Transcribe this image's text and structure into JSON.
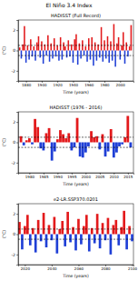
{
  "title": "El Niño 3.4 Index",
  "chart_data": [
    {
      "type": "bar",
      "title": "HADISST (Full Record)",
      "x_label": "Time (years)",
      "y_label": "(°C)",
      "x": [
        1872,
        1874,
        1876,
        1878,
        1880,
        1882,
        1884,
        1886,
        1888,
        1890,
        1892,
        1894,
        1896,
        1898,
        1900,
        1902,
        1904,
        1906,
        1908,
        1910,
        1912,
        1914,
        1916,
        1918,
        1920,
        1922,
        1924,
        1926,
        1928,
        1930,
        1932,
        1934,
        1936,
        1938,
        1940,
        1942,
        1944,
        1946,
        1948,
        1950,
        1952,
        1954,
        1956,
        1958,
        1960,
        1962,
        1964,
        1966,
        1968,
        1970,
        1972,
        1974,
        1976,
        1978,
        1980,
        1982,
        1984,
        1986,
        1988,
        1990,
        1992,
        1994,
        1996,
        1998,
        2000,
        2002,
        2004,
        2006,
        2008,
        2010,
        2012,
        2014
      ],
      "values": [
        0.3,
        -0.8,
        0.6,
        2.4,
        -1.2,
        0.5,
        -0.9,
        1.1,
        -0.6,
        0.4,
        -1.0,
        0.8,
        1.4,
        -0.7,
        0.9,
        -1.3,
        0.6,
        -0.5,
        1.5,
        -1.1,
        0.7,
        -0.8,
        1.2,
        -0.6,
        0.5,
        -1.0,
        1.3,
        -0.9,
        0.8,
        0.4,
        -0.7,
        1.0,
        -0.6,
        0.6,
        -1.2,
        1.1,
        1.6,
        -1.4,
        0.7,
        -0.8,
        1.0,
        -0.5,
        0.4,
        -1.1,
        1.2,
        -0.9,
        1.3,
        -1.5,
        0.8,
        -1.0,
        0.6,
        -0.7,
        2.3,
        -1.1,
        1.0,
        -0.8,
        1.4,
        -1.2,
        0.9,
        -1.0,
        2.6,
        -1.6,
        0.7,
        1.3,
        -0.9,
        0.5,
        1.8,
        -1.3,
        0.8,
        -0.6,
        0.4,
        2.5
      ],
      "xlim": [
        1870,
        2017
      ],
      "xticks": [
        1880,
        1900,
        1920,
        1940,
        1960,
        1980,
        2000
      ],
      "ylim": [
        -3,
        3
      ],
      "yticks": [
        -2,
        0,
        2
      ],
      "reference_lines": [
        0.5,
        -0.5
      ]
    },
    {
      "type": "bar",
      "title": "HADISST (1976 - 2016)",
      "x_label": "Time (years)",
      "y_label": "(°C)",
      "x": [
        1977,
        1978,
        1979,
        1980,
        1981,
        1982,
        1983,
        1984,
        1985,
        1986,
        1987,
        1988,
        1989,
        1990,
        1991,
        1992,
        1993,
        1994,
        1995,
        1996,
        1997,
        1998,
        1999,
        2000,
        2001,
        2002,
        2003,
        2004,
        2005,
        2006,
        2007,
        2008,
        2009,
        2010,
        2011,
        2012,
        2013,
        2014,
        2015,
        2016
      ],
      "values": [
        0.6,
        -0.3,
        0.2,
        0.4,
        -0.2,
        2.3,
        1.5,
        -0.6,
        -0.8,
        0.9,
        1.4,
        -1.8,
        -0.9,
        0.3,
        1.2,
        0.8,
        0.4,
        0.9,
        -0.8,
        -0.5,
        2.4,
        -1.4,
        -1.5,
        -1.0,
        -0.4,
        1.1,
        0.5,
        0.6,
        -0.7,
        0.8,
        -1.4,
        -0.9,
        1.3,
        -1.5,
        -1.0,
        -0.4,
        -0.2,
        0.5,
        2.6,
        -0.5
      ],
      "xlim": [
        1976,
        2017
      ],
      "xticks": [
        1980,
        1985,
        1990,
        1995,
        2000,
        2005,
        2010,
        2015
      ],
      "ylim": [
        -3,
        3
      ],
      "yticks": [
        -2,
        0,
        2
      ],
      "reference_lines": [
        0.5,
        -0.5
      ]
    },
    {
      "type": "bar",
      "title": "e2-LR.SSP370.0201",
      "x_label": "Time (years)",
      "y_label": "(°C)",
      "x": [
        2016,
        2018,
        2020,
        2022,
        2024,
        2026,
        2028,
        2030,
        2032,
        2034,
        2036,
        2038,
        2040,
        2042,
        2044,
        2046,
        2048,
        2050,
        2052,
        2054,
        2056,
        2058,
        2060,
        2062,
        2064,
        2066,
        2068,
        2070,
        2072,
        2074,
        2076,
        2078,
        2080,
        2082,
        2084,
        2086,
        2088,
        2090,
        2092,
        2094,
        2096,
        2098,
        2100
      ],
      "values": [
        1.2,
        -1.5,
        0.8,
        1.9,
        -1.1,
        0.6,
        -1.8,
        1.4,
        -0.7,
        2.1,
        -1.3,
        0.9,
        -0.6,
        1.7,
        -1.9,
        0.5,
        1.3,
        -1.2,
        2.2,
        -0.8,
        0.7,
        -1.6,
        1.5,
        -1.0,
        0.8,
        1.9,
        -1.7,
        0.6,
        -0.9,
        2.0,
        -1.4,
        1.1,
        -0.6,
        1.6,
        -2.0,
        0.9,
        1.4,
        -1.1,
        0.7,
        2.3,
        -1.5,
        0.8,
        -0.7
      ],
      "xlim": [
        2015,
        2101
      ],
      "xticks": [
        2020,
        2040,
        2060,
        2080,
        2100
      ],
      "ylim": [
        -3,
        3
      ],
      "yticks": [
        -2,
        0,
        2
      ],
      "reference_lines": [
        0.5,
        -0.5
      ]
    }
  ]
}
